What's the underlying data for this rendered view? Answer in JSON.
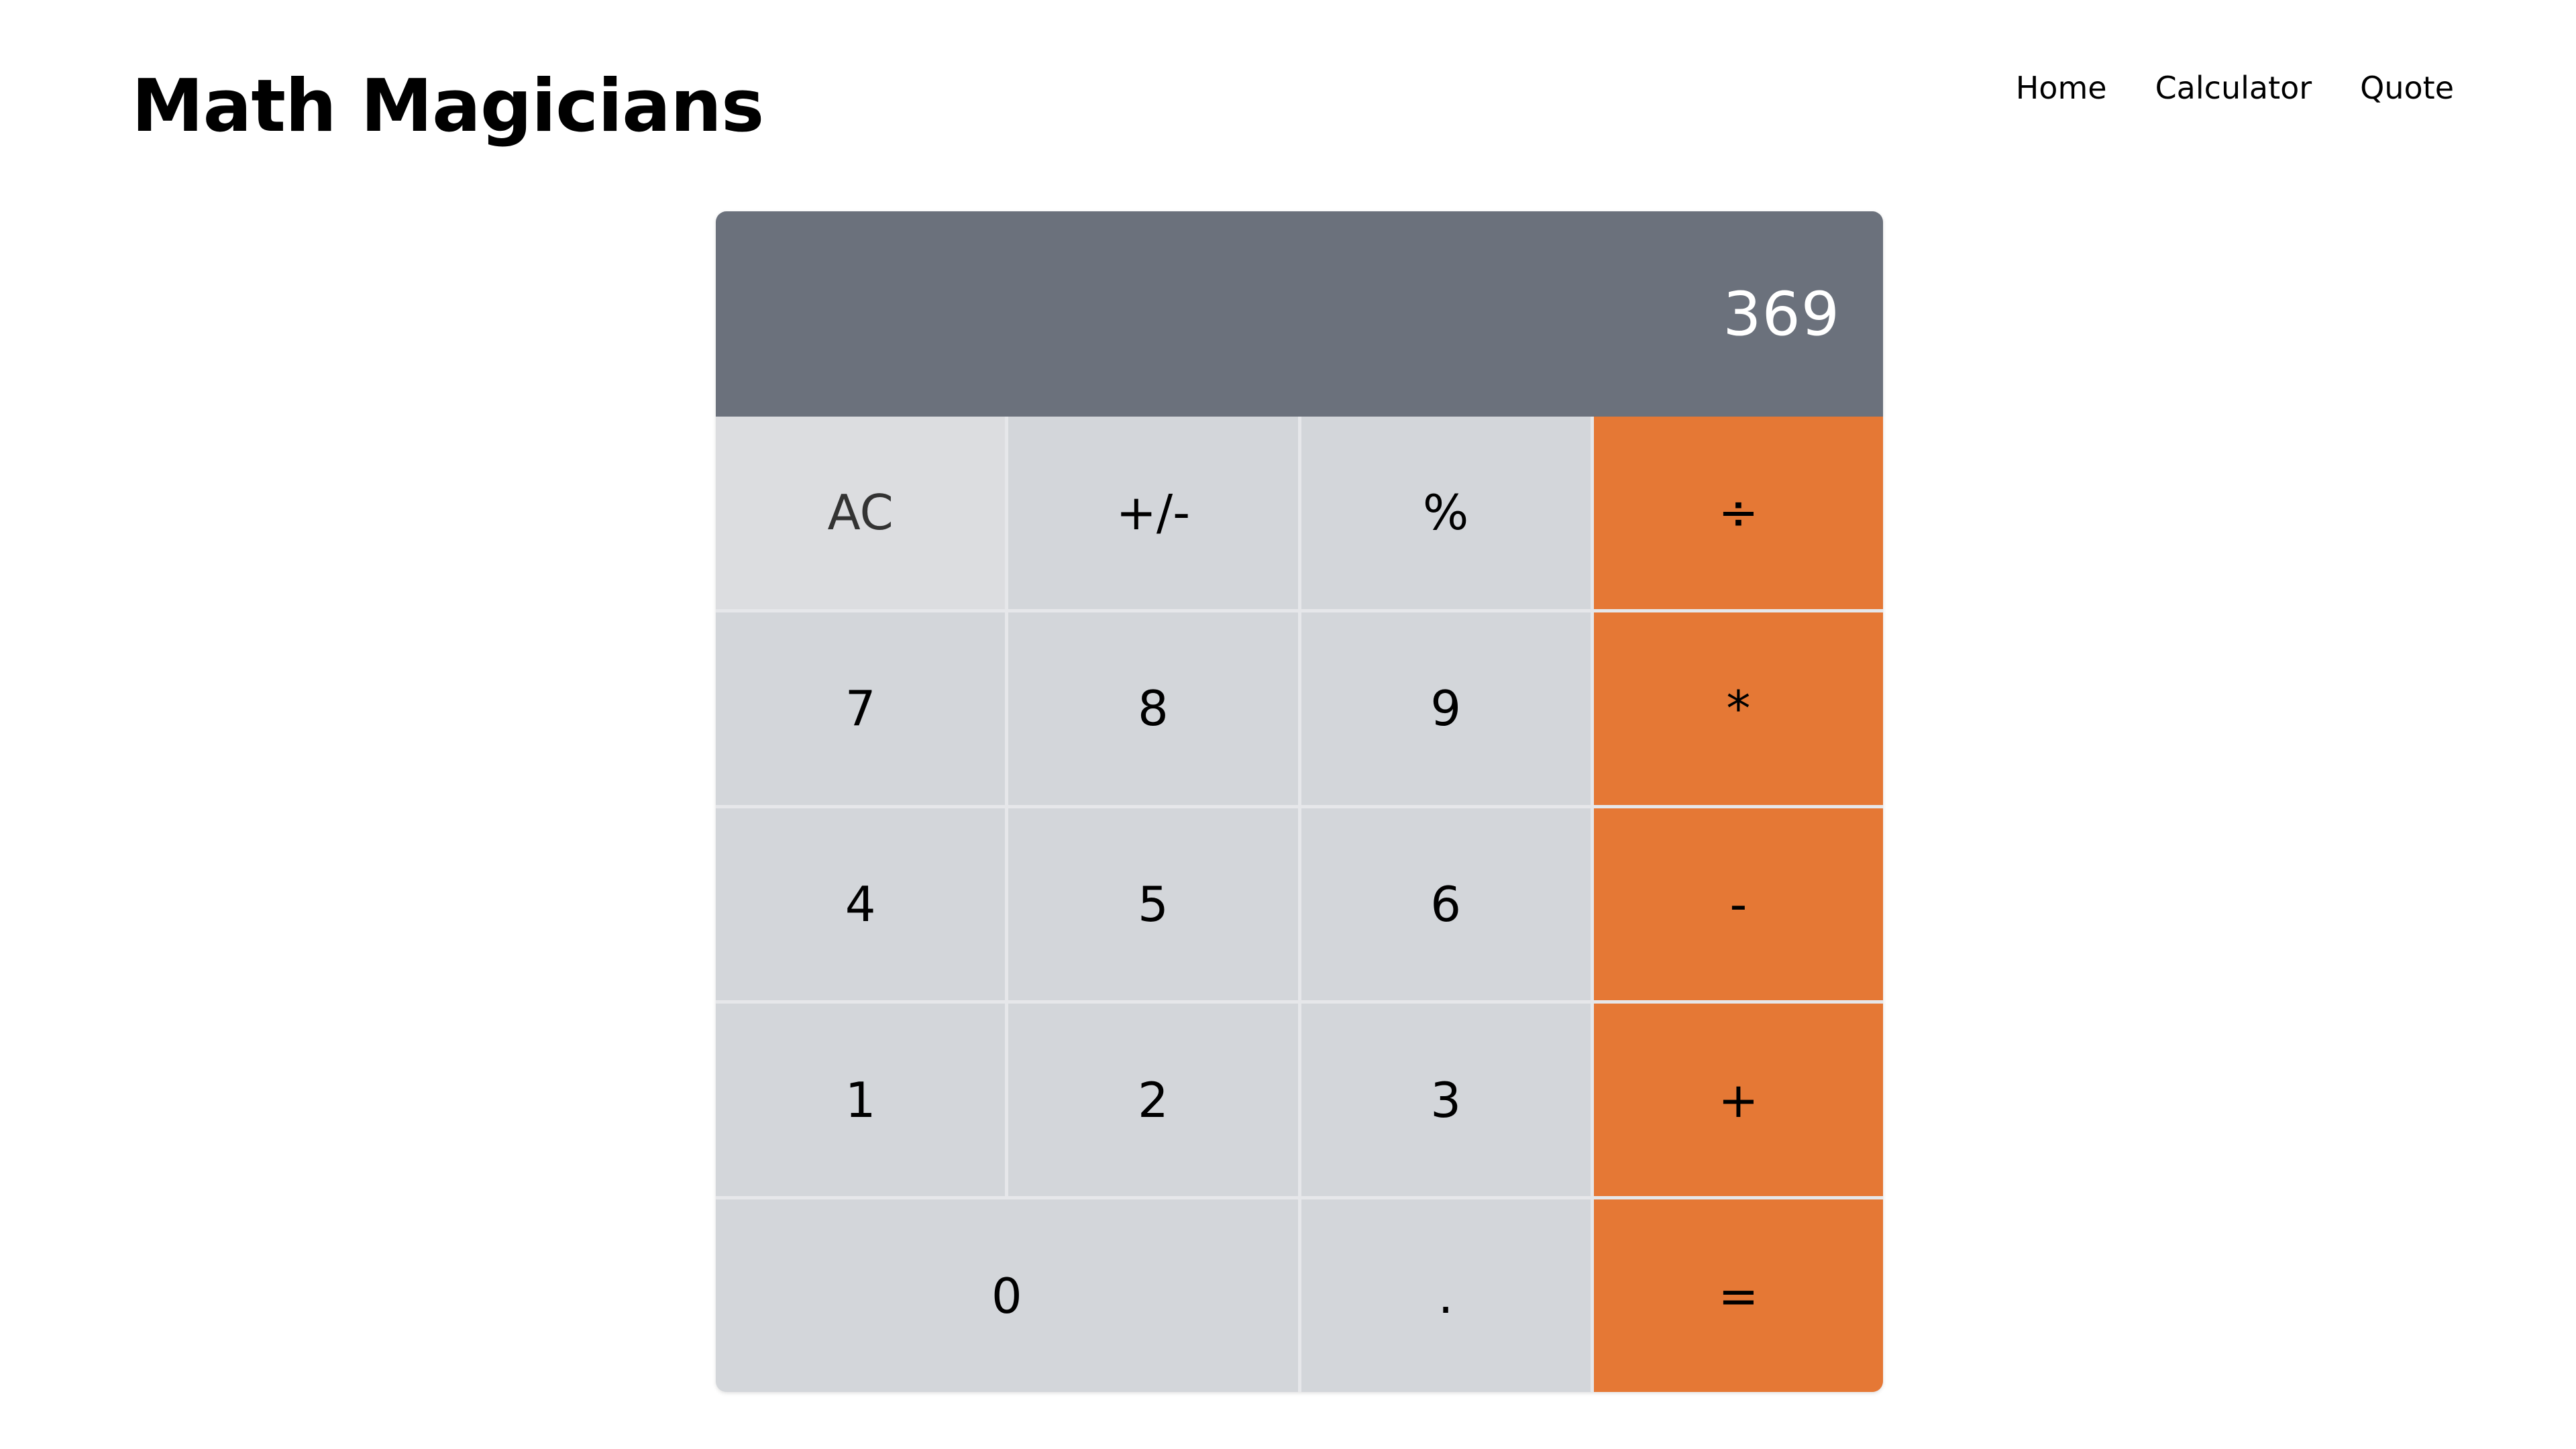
{
  "header": {
    "title": "Math Magicians",
    "nav": [
      "Home",
      "Calculator",
      "Quote"
    ]
  },
  "calculator": {
    "display": "369",
    "keys": {
      "ac": "AC",
      "sign": "+/-",
      "percent": "%",
      "divide": "÷",
      "seven": "7",
      "eight": "8",
      "nine": "9",
      "multiply": "*",
      "four": "4",
      "five": "5",
      "six": "6",
      "subtract": "-",
      "one": "1",
      "two": "2",
      "three": "3",
      "add": "+",
      "zero": "0",
      "decimal": ".",
      "equals": "="
    }
  },
  "colors": {
    "display_background": "#6b717c",
    "key_background": "#d3d6da",
    "operator_background": "#e57835"
  }
}
